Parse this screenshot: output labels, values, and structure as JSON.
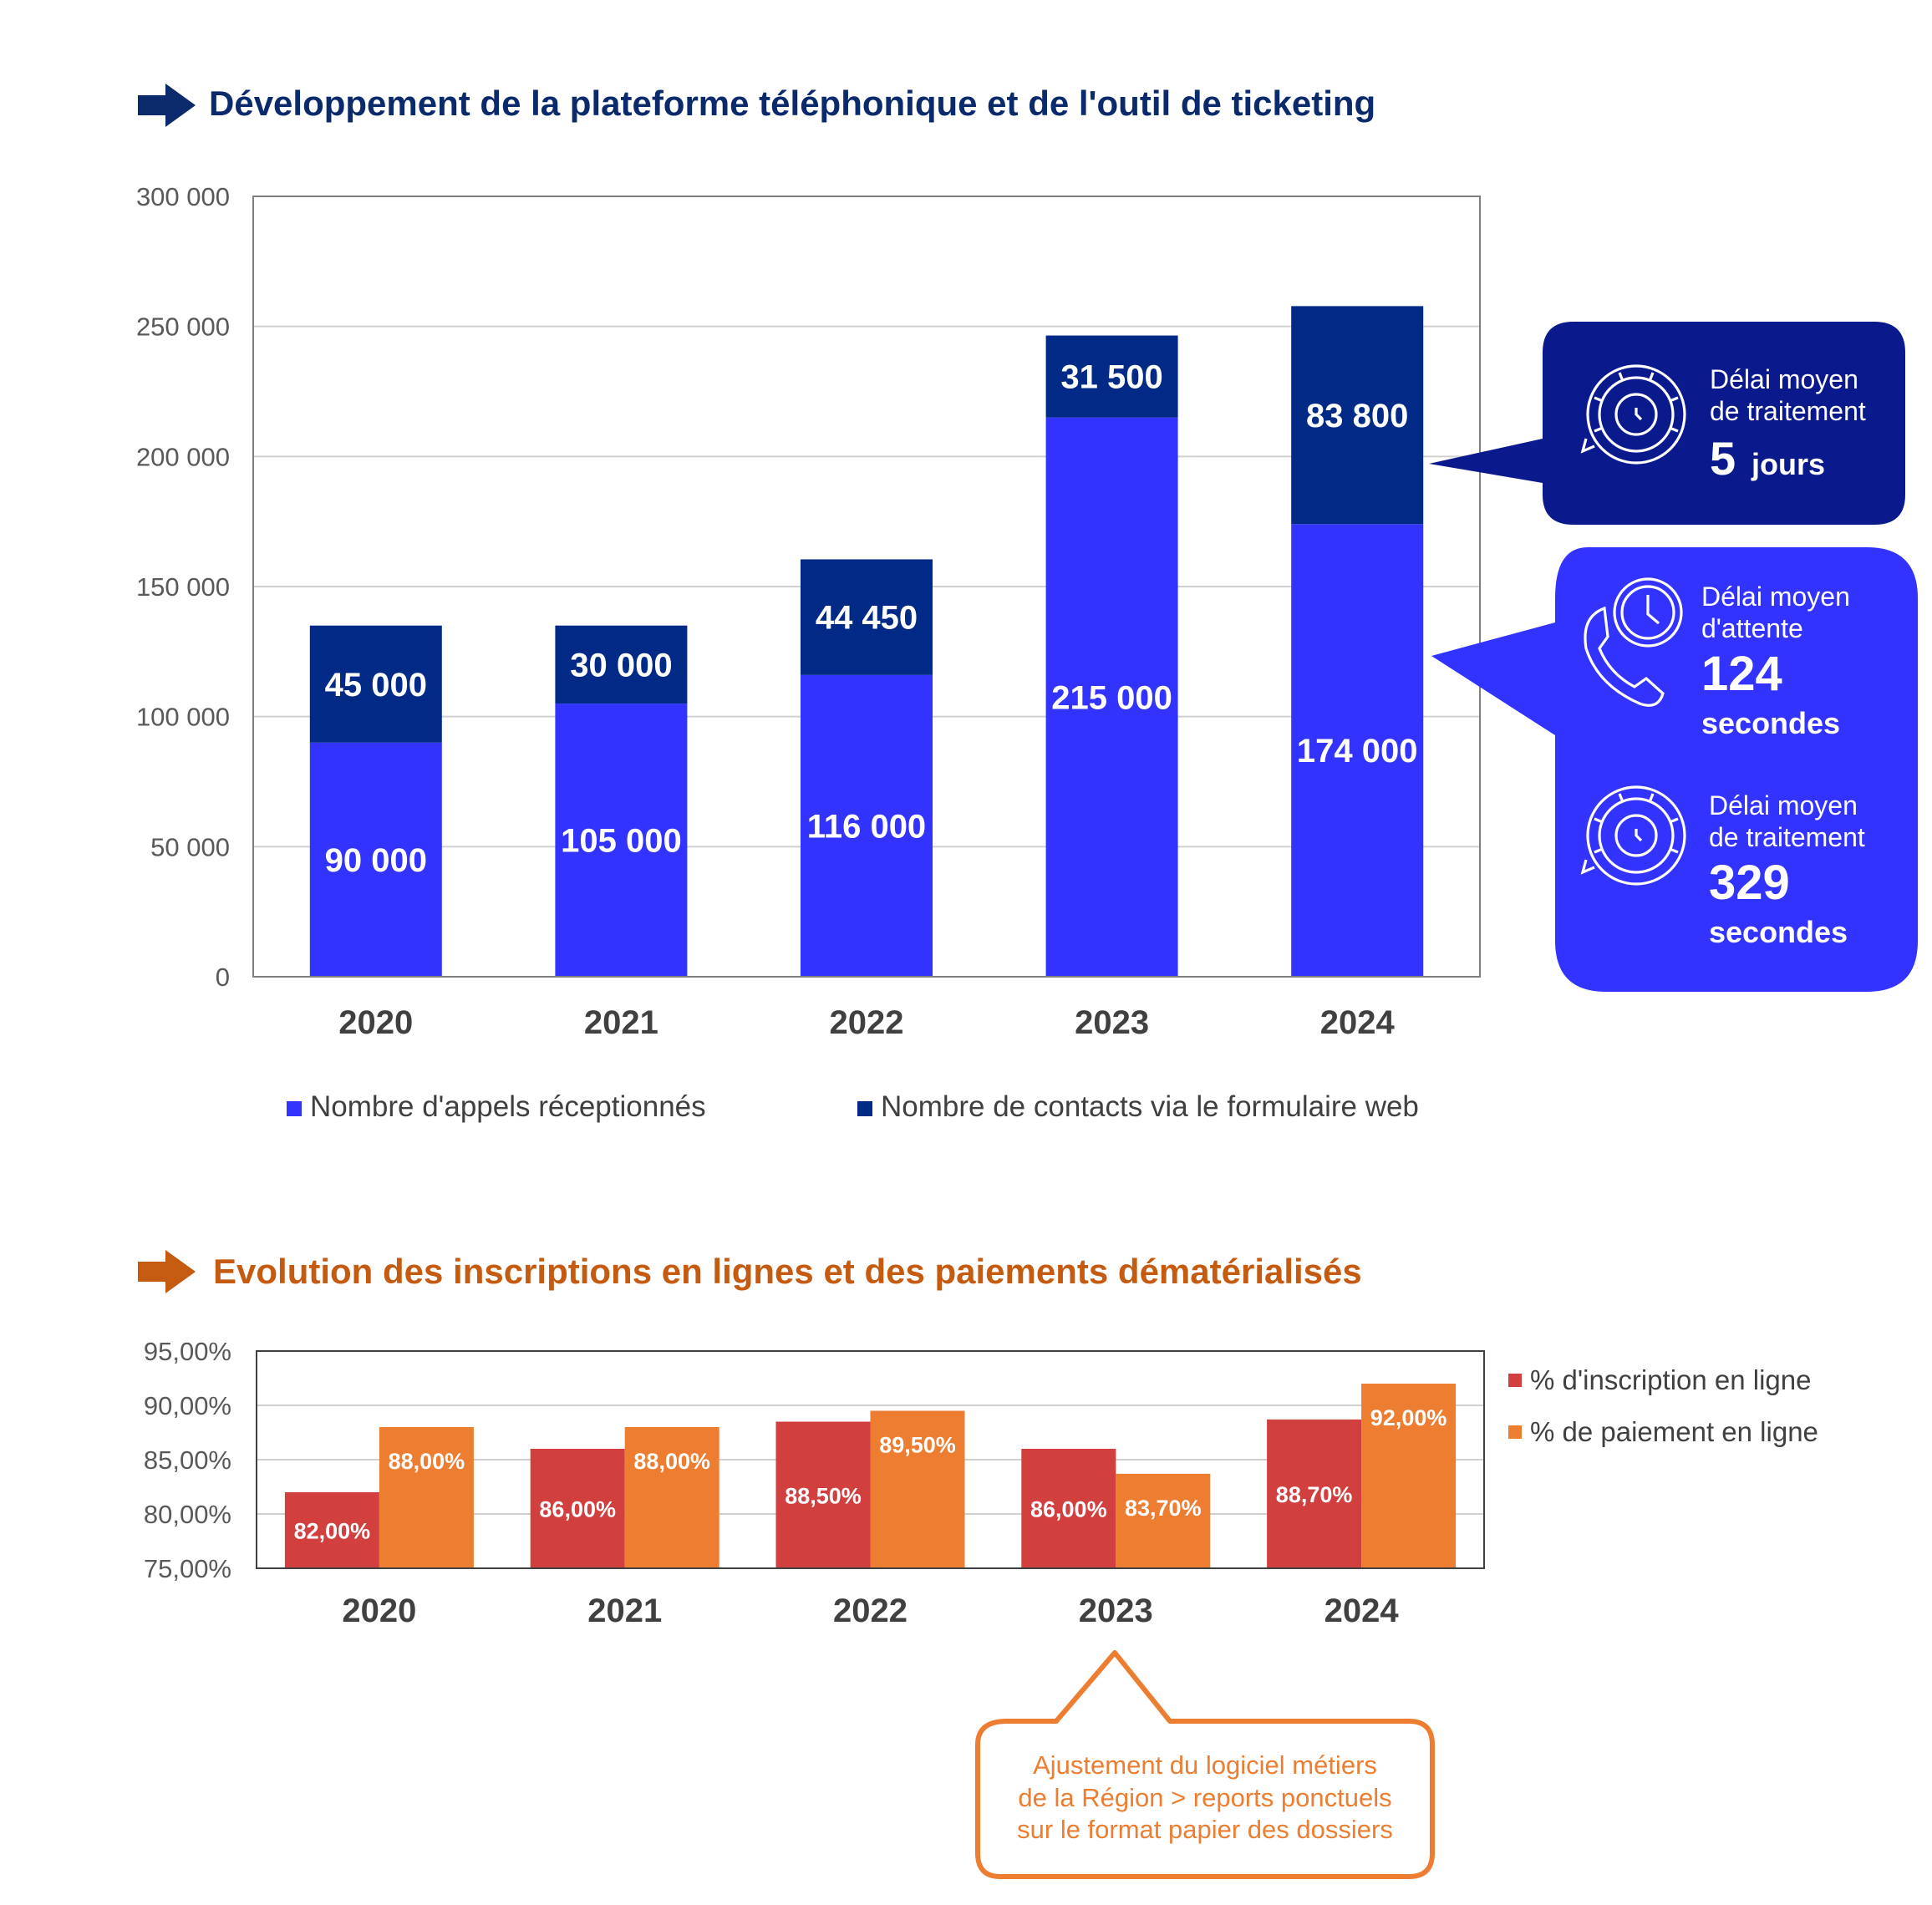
{
  "section1": {
    "title": "Développement de la plateforme téléphonique et de l'outil de ticketing",
    "title_color": "#0B2A6B"
  },
  "section2": {
    "title": "Evolution des inscriptions en lignes et des paiements dématérialisés",
    "title_color": "#C55A11"
  },
  "callout_processing": {
    "label_line1": "Délai moyen",
    "label_line2": "de traitement",
    "value": "5",
    "unit": "jours",
    "icon": "gear-clock-icon",
    "color": "#0A1A8C"
  },
  "callout_phone": {
    "wait_label_line1": "Délai moyen",
    "wait_label_line2": "d'attente",
    "wait_value": "124",
    "wait_unit": "secondes",
    "wait_icon": "phone-clock-icon",
    "proc_label_line1": "Délai moyen",
    "proc_label_line2": "de traitement",
    "proc_value": "329",
    "proc_unit": "secondes",
    "proc_icon": "gear-clock-icon",
    "color": "#3333FF"
  },
  "note": {
    "line1": "Ajustement du logiciel métiers",
    "line2": "de la Région > reports ponctuels",
    "line3": "sur le format papier des dossiers",
    "color": "#ED7D31"
  },
  "chart_data": [
    {
      "type": "bar",
      "stacked": true,
      "categories": [
        "2020",
        "2021",
        "2022",
        "2023",
        "2024"
      ],
      "series": [
        {
          "name": "Nombre d'appels réceptionnés",
          "values": [
            90000,
            105000,
            116000,
            215000,
            174000
          ],
          "labels": [
            "90 000",
            "105 000",
            "116 000",
            "215 000",
            "174 000"
          ],
          "color": "#3333FF"
        },
        {
          "name": "Nombre de contacts via le formulaire web",
          "values": [
            45000,
            30000,
            44450,
            31500,
            83800
          ],
          "labels": [
            "45 000",
            "30 000",
            "44 450",
            "31 500",
            "83 800"
          ],
          "color": "#002A85"
        }
      ],
      "ylim": [
        0,
        300000
      ],
      "yticks": [
        0,
        50000,
        100000,
        150000,
        200000,
        250000,
        300000
      ],
      "ytick_labels": [
        "0",
        "50 000",
        "100 000",
        "150 000",
        "200 000",
        "250 000",
        "300 000"
      ],
      "grid": true,
      "legend": "bottom"
    },
    {
      "type": "bar",
      "stacked": false,
      "categories": [
        "2020",
        "2021",
        "2022",
        "2023",
        "2024"
      ],
      "series": [
        {
          "name": "% d'inscription en ligne",
          "values": [
            82.0,
            86.0,
            88.5,
            86.0,
            88.7
          ],
          "labels": [
            "82,00%",
            "86,00%",
            "88,50%",
            "86,00%",
            "88,70%"
          ],
          "color": "#D13F3F"
        },
        {
          "name": "% de paiement en ligne",
          "values": [
            88.0,
            88.0,
            89.5,
            83.7,
            92.0
          ],
          "labels": [
            "88,00%",
            "88,00%",
            "89,50%",
            "83,70%",
            "92,00%"
          ],
          "color": "#ED7D31"
        }
      ],
      "ylim": [
        75,
        95
      ],
      "yticks": [
        75,
        80,
        85,
        90,
        95
      ],
      "ytick_labels": [
        "75,00%",
        "80,00%",
        "85,00%",
        "90,00%",
        "95,00%"
      ],
      "grid": true,
      "legend": "right"
    }
  ]
}
